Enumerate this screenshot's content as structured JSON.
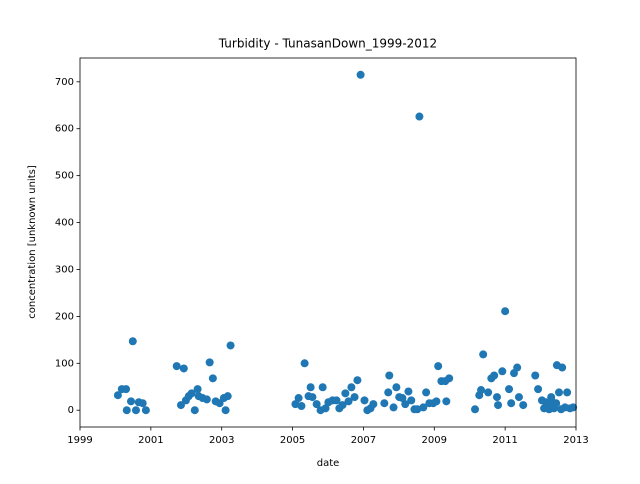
{
  "chart_data": {
    "type": "scatter",
    "title": "Turbidity - TunasanDown_1999-2012",
    "x_label": "date",
    "y_label": "concentration [unknown units]",
    "color": "#1f77b4",
    "xlim": [
      1999,
      2013
    ],
    "xticks": [
      1999,
      2001,
      2003,
      2005,
      2007,
      2009,
      2011,
      2013
    ],
    "ylim": [
      -35.75,
      750.75
    ],
    "yticks": [
      0,
      100,
      200,
      300,
      400,
      500,
      600,
      700
    ],
    "x": [
      2000.07,
      2000.18,
      2000.3,
      2000.32,
      2000.44,
      2000.49,
      2000.58,
      2000.66,
      2000.77,
      2000.86,
      2001.73,
      2001.93,
      2001.85,
      2001.99,
      2002.07,
      2002.15,
      2002.24,
      2002.32,
      2002.35,
      2002.46,
      2002.58,
      2002.66,
      2002.75,
      2002.83,
      2002.94,
      2003.06,
      2003.11,
      2003.17,
      2003.25,
      2005.08,
      2005.17,
      2005.25,
      2005.34,
      2005.45,
      2005.51,
      2005.56,
      2005.68,
      2005.79,
      2005.85,
      2005.93,
      2006.01,
      2006.13,
      2006.24,
      2006.32,
      2006.41,
      2006.49,
      2006.58,
      2006.66,
      2006.75,
      2006.83,
      2006.92,
      2007.03,
      2007.11,
      2007.2,
      2007.28,
      2007.59,
      2007.7,
      2007.73,
      2007.85,
      2007.93,
      2008.01,
      2008.1,
      2008.18,
      2008.27,
      2008.35,
      2008.44,
      2008.52,
      2008.58,
      2008.69,
      2008.77,
      2008.86,
      2008.97,
      2009.06,
      2009.11,
      2009.2,
      2009.31,
      2009.34,
      2009.42,
      2010.15,
      2010.27,
      2010.32,
      2010.38,
      2010.52,
      2010.61,
      2010.69,
      2010.77,
      2010.8,
      2010.92,
      2011.0,
      2011.11,
      2011.17,
      2011.25,
      2011.34,
      2011.39,
      2011.51,
      2011.85,
      2011.93,
      2012.04,
      2012.1,
      2012.15,
      2012.21,
      2012.24,
      2012.3,
      2012.32,
      2012.38,
      2012.44,
      2012.46,
      2012.52,
      2012.58,
      2012.61,
      2012.69,
      2012.75,
      2012.83,
      2012.92
    ],
    "values": [
      32,
      45,
      45,
      0,
      19,
      147,
      0,
      17,
      15,
      0,
      94,
      89,
      11,
      21,
      30,
      36,
      0,
      45,
      30,
      26,
      23,
      102,
      68,
      19,
      15,
      26,
      0,
      30,
      138,
      13,
      26,
      9,
      100,
      30,
      49,
      28,
      13,
      0,
      49,
      4,
      17,
      21,
      21,
      4,
      11,
      36,
      19,
      49,
      28,
      64,
      715,
      21,
      0,
      4,
      13,
      15,
      38,
      74,
      6,
      49,
      28,
      26,
      13,
      40,
      21,
      2,
      2,
      626,
      6,
      38,
      15,
      15,
      19,
      94,
      62,
      62,
      19,
      68,
      2,
      32,
      43,
      119,
      38,
      68,
      74,
      28,
      11,
      83,
      211,
      45,
      15,
      79,
      91,
      28,
      11,
      74,
      45,
      21,
      4,
      17,
      13,
      2,
      28,
      19,
      4,
      15,
      96,
      38,
      2,
      91,
      6,
      38,
      4,
      6
    ]
  }
}
